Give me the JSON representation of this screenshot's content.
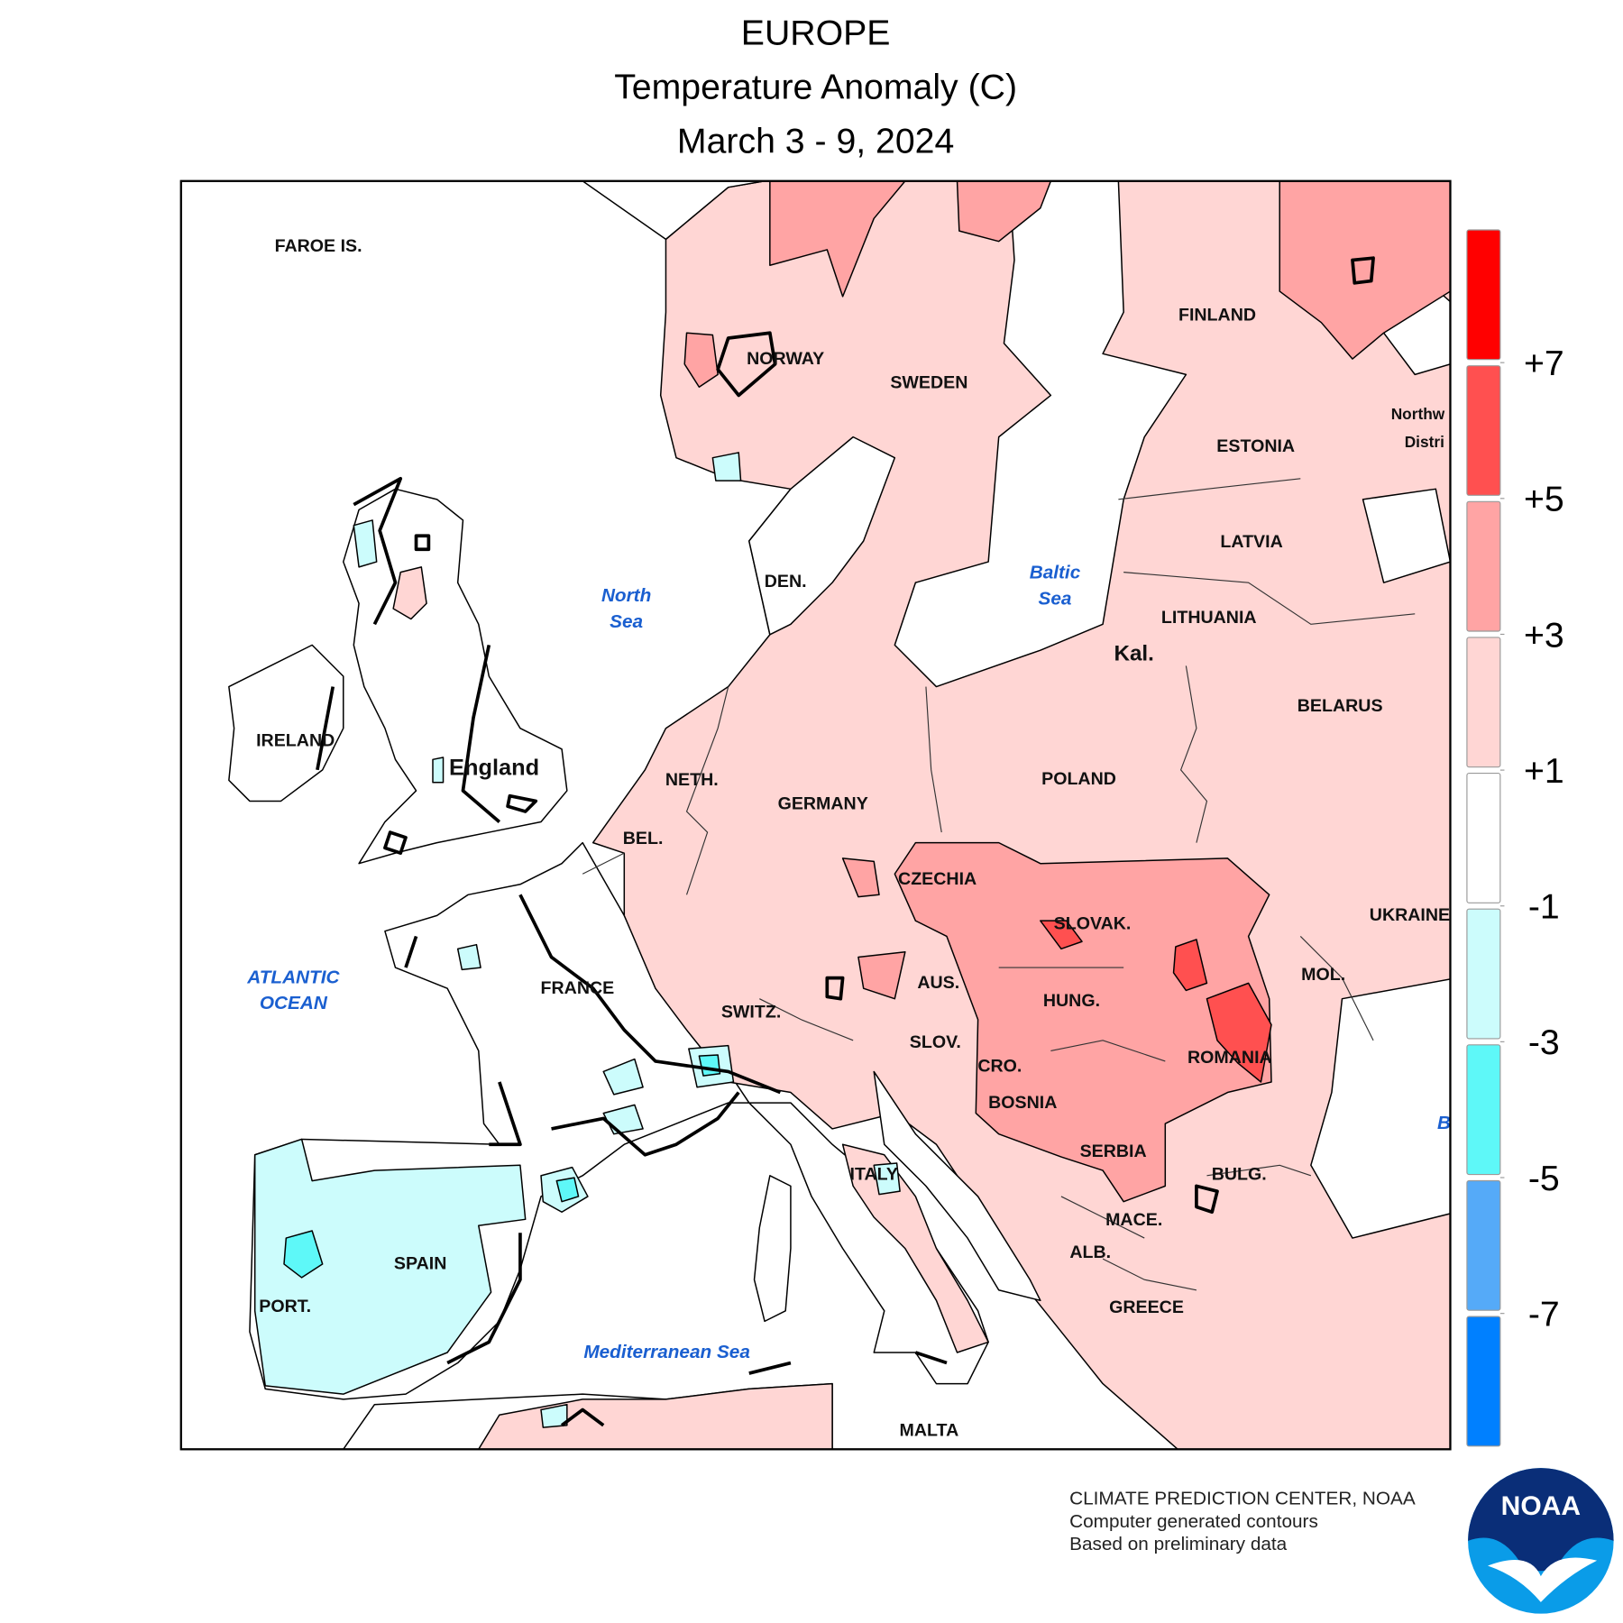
{
  "header": {
    "title": "EUROPE",
    "subtitle": "Temperature Anomaly (C)",
    "date": "March 3 - 9, 2024"
  },
  "map": {
    "labels": [
      "FAROE IS.",
      "NORWAY",
      "SWEDEN",
      "FINLAND",
      "ESTONIA",
      "LATVIA",
      "LITHUANIA",
      "Kal.",
      "BELARUS",
      "POLAND",
      "GERMANY",
      "NETH.",
      "BEL.",
      "DEN.",
      "IRELAND",
      "England",
      "CZECHIA",
      "SLOVAK.",
      "UKRAINE",
      "MOL.",
      "AUS.",
      "HUNG.",
      "SWITZ.",
      "FRANCE",
      "SLOV.",
      "CRO.",
      "ROMANIA",
      "BOSNIA",
      "SERBIA",
      "ITALY",
      "BULG.",
      "MACE.",
      "ALB.",
      "SPAIN",
      "PORT.",
      "GREECE",
      "MALTA",
      "Northw",
      "Distri"
    ],
    "sea_labels": [
      [
        "North",
        "Sea"
      ],
      [
        "Baltic",
        "Sea"
      ],
      [
        "ATLANTIC",
        "OCEAN"
      ],
      [
        "Mediterranean Sea"
      ],
      [
        "B"
      ]
    ]
  },
  "legend": {
    "colors": [
      "#ff0000",
      "#ff5050",
      "#ffa4a4",
      "#ffd6d4",
      "#ffffff",
      "#ccfcfc",
      "#5ef8f8",
      "#55aaf8",
      "#0080ff"
    ],
    "ticks": [
      {
        "value": 7,
        "label": "+7"
      },
      {
        "value": 5,
        "label": "+5"
      },
      {
        "value": 3,
        "label": "+3"
      },
      {
        "value": 1,
        "label": "+1"
      },
      -1,
      -3,
      -5,
      -7
    ]
  },
  "footer": {
    "lines": [
      "CLIMATE PREDICTION CENTER, NOAA",
      "Computer generated contours",
      "Based on preliminary data"
    ]
  },
  "logo": "NOAA"
}
